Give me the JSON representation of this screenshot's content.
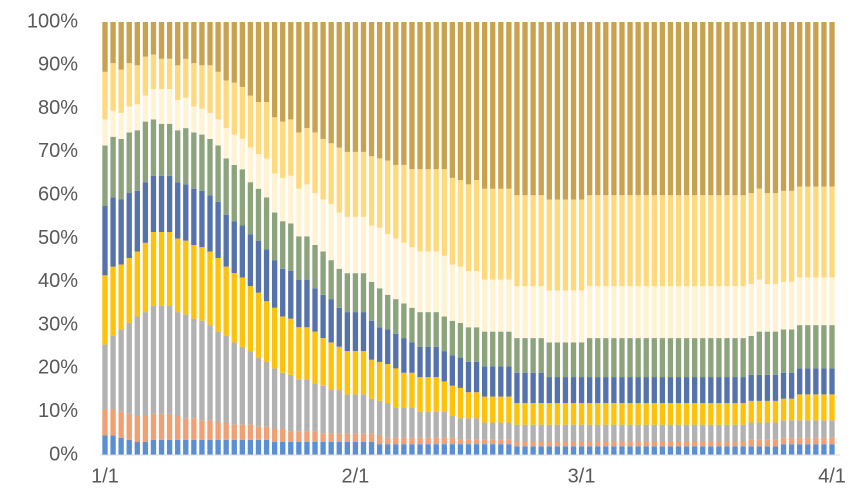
{
  "chart_data": {
    "type": "stacked_bar_100",
    "categories": [
      "1/1",
      null,
      null,
      null,
      null,
      null,
      null,
      null,
      null,
      null,
      null,
      null,
      null,
      null,
      null,
      null,
      null,
      null,
      null,
      null,
      null,
      null,
      null,
      null,
      null,
      null,
      null,
      null,
      null,
      null,
      null,
      "2/1",
      null,
      null,
      null,
      null,
      null,
      null,
      null,
      null,
      null,
      null,
      null,
      null,
      null,
      null,
      null,
      null,
      null,
      null,
      null,
      null,
      null,
      null,
      null,
      null,
      null,
      null,
      null,
      "3/1",
      null,
      null,
      null,
      null,
      null,
      null,
      null,
      null,
      null,
      null,
      null,
      null,
      null,
      null,
      null,
      null,
      null,
      null,
      null,
      null,
      null,
      null,
      null,
      null,
      null,
      null,
      null,
      null,
      null,
      null,
      "4/1"
    ],
    "ylim": [
      0,
      100
    ],
    "yticks": [
      {
        "value": 0,
        "label": "0%"
      },
      {
        "value": 10,
        "label": "10%"
      },
      {
        "value": 20,
        "label": "20%"
      },
      {
        "value": 30,
        "label": "30%"
      },
      {
        "value": 40,
        "label": "40%"
      },
      {
        "value": 50,
        "label": "50%"
      },
      {
        "value": 60,
        "label": "60%"
      },
      {
        "value": 70,
        "label": "70%"
      },
      {
        "value": 80,
        "label": "80%"
      },
      {
        "value": 90,
        "label": "90%"
      },
      {
        "value": 100,
        "label": "100%"
      }
    ],
    "grid": false,
    "series": [
      {
        "color": "#5b8fd4",
        "values": [
          4.5,
          4.5,
          4,
          3.5,
          3,
          3,
          3.5,
          3.5,
          3.5,
          3.5,
          3.5,
          3.5,
          3.5,
          3.5,
          3.5,
          3.5,
          3.5,
          3.5,
          3.5,
          3.5,
          3.5,
          3,
          3,
          3,
          3,
          3,
          3,
          3,
          3,
          3,
          3,
          3,
          3,
          3,
          2.5,
          2.5,
          2.5,
          2.5,
          2.5,
          2.5,
          2.5,
          2.5,
          2.5,
          2.5,
          2.5,
          2.5,
          2.5,
          2.5,
          2.5,
          2.5,
          2.5,
          2,
          2,
          2,
          2,
          2,
          2,
          2,
          2,
          2,
          2,
          2,
          2,
          2,
          2,
          2,
          2,
          2,
          2,
          2,
          2,
          2,
          2,
          2,
          2,
          2,
          2,
          2,
          2,
          2,
          2,
          2,
          2,
          2,
          2.5,
          2.5,
          2.5,
          2.5,
          2.5,
          2.5,
          2.5
        ]
      },
      {
        "color": "#f0a072",
        "values": [
          6,
          6,
          6,
          6,
          6,
          6,
          6,
          6,
          6,
          5.5,
          5,
          5,
          4.5,
          4.5,
          4,
          4,
          3.5,
          3.5,
          3.5,
          3,
          3,
          3,
          3,
          2.5,
          2.5,
          2.5,
          2.5,
          2,
          2,
          2,
          2,
          2,
          2,
          2,
          2,
          1.5,
          1.5,
          1.5,
          1.5,
          1.5,
          1.5,
          1.5,
          1.5,
          1.5,
          1,
          1,
          1,
          1,
          1,
          1,
          1,
          1,
          1,
          1,
          1,
          1,
          1,
          1,
          1,
          1,
          1,
          1,
          1,
          1,
          1,
          1,
          1,
          1,
          1,
          1,
          1,
          1,
          1,
          1,
          1,
          1,
          1,
          1,
          1,
          1,
          1.5,
          1.5,
          1.5,
          1.5,
          1.5,
          1.5,
          1.5,
          1.5,
          1.5,
          1.5,
          1.5
        ]
      },
      {
        "color": "#b2b2b2",
        "values": [
          15,
          17,
          19,
          21,
          23,
          24,
          25,
          25,
          25,
          24,
          24,
          23,
          23,
          22,
          21,
          20,
          19,
          18,
          17,
          16,
          15,
          14,
          13,
          13,
          12,
          12,
          11,
          11,
          10,
          10,
          9,
          9,
          9,
          8,
          8,
          8,
          7,
          7,
          7,
          6,
          6,
          6,
          6,
          5,
          5,
          5,
          5,
          4,
          4,
          4,
          4,
          4,
          4,
          4,
          4,
          4,
          4,
          4,
          4,
          4,
          4,
          4,
          4,
          4,
          4,
          4,
          4,
          4,
          4,
          4,
          4,
          4,
          4,
          4,
          4,
          4,
          4,
          4,
          4,
          4,
          4,
          4,
          4,
          4,
          4,
          4,
          4,
          4,
          4,
          4,
          4
        ]
      },
      {
        "color": "#ffc20a",
        "values": [
          16,
          16,
          15,
          15,
          15,
          16,
          17,
          17,
          17,
          17,
          17,
          17,
          17,
          17,
          17,
          16,
          16,
          16,
          15,
          15,
          14,
          14,
          13,
          13,
          12,
          12,
          12,
          11,
          11,
          10,
          10,
          10,
          10,
          9,
          9,
          9,
          9,
          8,
          8,
          8,
          8,
          8,
          7,
          7,
          7,
          6,
          6,
          6,
          6,
          6,
          6,
          5,
          5,
          5,
          5,
          5,
          5,
          5,
          5,
          5,
          5,
          5,
          5,
          5,
          5,
          5,
          5,
          5,
          5,
          5,
          5,
          5,
          5,
          5,
          5,
          5,
          5,
          5,
          5,
          5,
          5,
          5,
          5,
          5,
          5,
          5,
          6,
          6,
          6,
          6,
          6
        ]
      },
      {
        "color": "#5672aa",
        "values": [
          16,
          16,
          15,
          15,
          14,
          14,
          13,
          13,
          13,
          13,
          13,
          13,
          13,
          13,
          13,
          12,
          12,
          12,
          12,
          12,
          12,
          11,
          11,
          11,
          11,
          11,
          10,
          10,
          10,
          9,
          9,
          9,
          9,
          9,
          8,
          8,
          8,
          8,
          7,
          7,
          7,
          7,
          7,
          7,
          7,
          7,
          7,
          7,
          7,
          7,
          7,
          7,
          7,
          7,
          7,
          6,
          6,
          6,
          6,
          6,
          6,
          6,
          6,
          6,
          6,
          6,
          6,
          6,
          6,
          6,
          6,
          6,
          6,
          6,
          6,
          6,
          6,
          6,
          6,
          6,
          6,
          6,
          6,
          6,
          6,
          6,
          6,
          6,
          6,
          6,
          6
        ]
      },
      {
        "color": "#8ca37c",
        "values": [
          14,
          14,
          14,
          14,
          14,
          14,
          13,
          12,
          12,
          12,
          13,
          13,
          13,
          13,
          13,
          13,
          13,
          13,
          12,
          12,
          12,
          11,
          11,
          11,
          10,
          10,
          10,
          10,
          9,
          9,
          9,
          9,
          9,
          9,
          9,
          8,
          8,
          8,
          8,
          8,
          8,
          8,
          8,
          8,
          8,
          8,
          8,
          8,
          8,
          8,
          8,
          8,
          8,
          8,
          8,
          8,
          8,
          8,
          8,
          8,
          9,
          9,
          9,
          9,
          9,
          9,
          9,
          9,
          9,
          9,
          9,
          9,
          9,
          9,
          9,
          9,
          9,
          9,
          9,
          9,
          9,
          10,
          10,
          10,
          10,
          10,
          10,
          10,
          10,
          10,
          10
        ]
      },
      {
        "color": "#fff3d4",
        "values": [
          6,
          6,
          6,
          6,
          6,
          6,
          7,
          8,
          8,
          7,
          7,
          6,
          6,
          6,
          6,
          7,
          7,
          7,
          8,
          8,
          9,
          9,
          10,
          11,
          11,
          12,
          12,
          12,
          13,
          13,
          13,
          13,
          13,
          13,
          14,
          14,
          14,
          14,
          14,
          14,
          14,
          14,
          14,
          13,
          13,
          13,
          13,
          12,
          12,
          12,
          12,
          12,
          12,
          12,
          12,
          12,
          12,
          12,
          12,
          12,
          12,
          12,
          12,
          12,
          12,
          12,
          12,
          12,
          12,
          12,
          12,
          12,
          12,
          12,
          12,
          12,
          12,
          12,
          12,
          12,
          12,
          12,
          11,
          11,
          11,
          11,
          11,
          11,
          11,
          11,
          11
        ]
      },
      {
        "color": "#ffd97c",
        "values": [
          11,
          11,
          10,
          10,
          9,
          9,
          8,
          7,
          7,
          8,
          9,
          10,
          10,
          11,
          11,
          11,
          12,
          12,
          12,
          12,
          13,
          13,
          13,
          13,
          13,
          13,
          14,
          14,
          14,
          15,
          15,
          15,
          15,
          16,
          16,
          17,
          17,
          18,
          18,
          19,
          19,
          19,
          20,
          20,
          20,
          20,
          21,
          21,
          21,
          21,
          21,
          21,
          21,
          21,
          21,
          21,
          21,
          21,
          21,
          21,
          21,
          21,
          21,
          21,
          21,
          21,
          21,
          21,
          21,
          21,
          21,
          21,
          21,
          21,
          21,
          21,
          21,
          21,
          21,
          21,
          21,
          21,
          21,
          21,
          21,
          21,
          21,
          21,
          21,
          21,
          21
        ]
      },
      {
        "color": "#c8a24e",
        "values": [
          11.5,
          9.5,
          11,
          9.5,
          10,
          8,
          7.5,
          8.5,
          8.5,
          10,
          8.5,
          9.5,
          10,
          10,
          11.5,
          13.5,
          14,
          15,
          17,
          18.5,
          18.5,
          22,
          23,
          22.5,
          25.5,
          24.5,
          25.5,
          27,
          28,
          29,
          30,
          30,
          30,
          31,
          31.5,
          32,
          33,
          33,
          34,
          34,
          34,
          34,
          34,
          36,
          36.5,
          37.5,
          36.5,
          38.5,
          38.5,
          38.5,
          38.5,
          40,
          40,
          40,
          40,
          41,
          41,
          41,
          41,
          41,
          40,
          40,
          40,
          40,
          40,
          40,
          40,
          40,
          40,
          40,
          40,
          40,
          40,
          40,
          40,
          40,
          40,
          40,
          40,
          40,
          39.5,
          38.5,
          39.5,
          39.5,
          39,
          39,
          38,
          38,
          38,
          38,
          38
        ]
      }
    ]
  }
}
